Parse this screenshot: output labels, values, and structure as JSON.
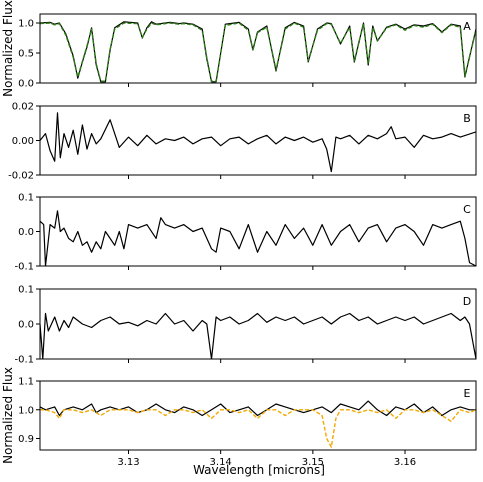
{
  "chart_data": [
    {
      "id": "A",
      "type": "line",
      "panel_label": "A",
      "ylabel": "Normalized Flux",
      "xlim": [
        3.1204,
        3.1677
      ],
      "ylim": [
        0.0,
        1.15
      ],
      "yticks": [
        0.0,
        0.5,
        1.0
      ],
      "ytick_labels": [
        "0.0",
        "0.5",
        "1.0"
      ],
      "series": [
        {
          "style": "solid",
          "color": "#000000",
          "x": [
            3.1204,
            3.1215,
            3.122,
            3.1225,
            3.1232,
            3.124,
            3.1245,
            3.125,
            3.1255,
            3.126,
            3.1265,
            3.127,
            3.1275,
            3.128,
            3.1285,
            3.1295,
            3.131,
            3.1315,
            3.132,
            3.1325,
            3.133,
            3.1345,
            3.1355,
            3.136,
            3.137,
            3.138,
            3.1385,
            3.139,
            3.1395,
            3.1405,
            3.142,
            3.143,
            3.1435,
            3.144,
            3.145,
            3.146,
            3.147,
            3.148,
            3.149,
            3.1495,
            3.1505,
            3.1515,
            3.152,
            3.153,
            3.154,
            3.1545,
            3.1555,
            3.156,
            3.1565,
            3.157,
            3.158,
            3.159,
            3.16,
            3.161,
            3.162,
            3.163,
            3.164,
            3.165,
            3.166,
            3.1665,
            3.1677
          ],
          "y": [
            1.0,
            1.01,
            0.98,
            1.0,
            0.82,
            0.45,
            0.08,
            0.35,
            0.6,
            0.92,
            0.3,
            0.02,
            0.02,
            0.55,
            0.92,
            1.02,
            1.0,
            0.75,
            0.92,
            1.02,
            0.98,
            1.01,
            0.99,
            1.0,
            0.98,
            0.9,
            0.4,
            0.02,
            0.02,
            0.98,
            1.01,
            0.9,
            0.55,
            0.85,
            0.95,
            0.2,
            0.92,
            1.01,
            0.95,
            0.35,
            0.9,
            1.0,
            0.99,
            0.65,
            0.95,
            0.35,
            1.0,
            0.3,
            0.95,
            0.7,
            0.93,
            0.98,
            0.9,
            0.97,
            0.95,
            0.99,
            0.85,
            0.98,
            0.95,
            0.1,
            0.9
          ]
        },
        {
          "style": "dashed",
          "color": "#2a7d12",
          "x": [
            3.1204,
            3.1215,
            3.122,
            3.1225,
            3.1232,
            3.124,
            3.1245,
            3.125,
            3.1255,
            3.126,
            3.1265,
            3.127,
            3.1275,
            3.128,
            3.1285,
            3.1295,
            3.131,
            3.1315,
            3.132,
            3.1325,
            3.133,
            3.1345,
            3.1355,
            3.136,
            3.137,
            3.138,
            3.1385,
            3.139,
            3.1395,
            3.1405,
            3.142,
            3.143,
            3.1435,
            3.144,
            3.145,
            3.146,
            3.147,
            3.148,
            3.149,
            3.1495,
            3.1505,
            3.1515,
            3.152,
            3.153,
            3.154,
            3.1545,
            3.1555,
            3.156,
            3.1565,
            3.157,
            3.158,
            3.159,
            3.16,
            3.161,
            3.162,
            3.163,
            3.164,
            3.165,
            3.166,
            3.1665,
            3.1677
          ],
          "y": [
            0.99,
            1.0,
            0.97,
            0.99,
            0.8,
            0.43,
            0.1,
            0.36,
            0.62,
            0.9,
            0.32,
            0.03,
            0.03,
            0.56,
            0.9,
            1.0,
            0.99,
            0.76,
            0.9,
            1.0,
            0.97,
            1.0,
            0.98,
            0.99,
            0.97,
            0.88,
            0.42,
            0.03,
            0.03,
            0.96,
            1.0,
            0.88,
            0.56,
            0.84,
            0.93,
            0.22,
            0.9,
            1.0,
            0.93,
            0.37,
            0.88,
            0.99,
            0.98,
            0.66,
            0.93,
            0.37,
            0.99,
            0.32,
            0.93,
            0.7,
            0.92,
            0.97,
            0.88,
            0.96,
            0.93,
            0.98,
            0.84,
            0.97,
            0.93,
            0.12,
            0.88
          ]
        }
      ]
    },
    {
      "id": "B",
      "type": "line",
      "panel_label": "B",
      "xlim": [
        3.1204,
        3.1677
      ],
      "ylim": [
        -0.02,
        0.02
      ],
      "yticks": [
        -0.02,
        0.0,
        0.02
      ],
      "ytick_labels": [
        "-0.02",
        "0.00",
        "0.02"
      ],
      "series": [
        {
          "style": "solid",
          "color": "#000000",
          "x": [
            3.1204,
            3.121,
            3.1215,
            3.122,
            3.1223,
            3.1226,
            3.123,
            3.1235,
            3.124,
            3.1245,
            3.125,
            3.1255,
            3.126,
            3.1265,
            3.127,
            3.128,
            3.129,
            3.13,
            3.131,
            3.132,
            3.133,
            3.134,
            3.135,
            3.136,
            3.137,
            3.138,
            3.139,
            3.14,
            3.141,
            3.142,
            3.143,
            3.144,
            3.145,
            3.146,
            3.147,
            3.148,
            3.149,
            3.15,
            3.151,
            3.1515,
            3.152,
            3.1525,
            3.153,
            3.154,
            3.155,
            3.156,
            3.157,
            3.158,
            3.1585,
            3.159,
            3.16,
            3.161,
            3.162,
            3.163,
            3.164,
            3.165,
            3.166,
            3.1677
          ],
          "y": [
            0.0,
            0.004,
            -0.006,
            -0.012,
            0.016,
            -0.01,
            0.004,
            -0.004,
            0.006,
            -0.008,
            0.009,
            -0.005,
            0.004,
            -0.002,
            0.001,
            0.012,
            -0.004,
            0.002,
            -0.003,
            0.003,
            -0.002,
            0.001,
            0.0,
            0.002,
            -0.002,
            0.001,
            0.002,
            -0.003,
            0.001,
            0.002,
            -0.002,
            0.001,
            0.003,
            -0.002,
            0.002,
            0.0,
            0.002,
            -0.001,
            0.001,
            -0.005,
            -0.018,
            0.002,
            0.001,
            0.003,
            -0.002,
            0.003,
            0.001,
            0.004,
            0.008,
            0.001,
            0.002,
            -0.004,
            0.003,
            0.001,
            0.002,
            0.004,
            0.002,
            0.005
          ]
        }
      ]
    },
    {
      "id": "C",
      "type": "line",
      "panel_label": "C",
      "xlim": [
        3.1204,
        3.1677
      ],
      "ylim": [
        -0.1,
        0.1
      ],
      "yticks": [
        -0.1,
        0.0,
        0.1
      ],
      "ytick_labels": [
        "-0.1",
        "0.0",
        "0.1"
      ],
      "series": [
        {
          "style": "solid",
          "color": "#000000",
          "x": [
            3.1204,
            3.1208,
            3.121,
            3.1215,
            3.122,
            3.1223,
            3.1226,
            3.123,
            3.1235,
            3.124,
            3.1245,
            3.125,
            3.1255,
            3.126,
            3.1265,
            3.127,
            3.1275,
            3.128,
            3.1285,
            3.129,
            3.1295,
            3.13,
            3.131,
            3.132,
            3.133,
            3.1335,
            3.134,
            3.135,
            3.136,
            3.137,
            3.138,
            3.139,
            3.1395,
            3.14,
            3.141,
            3.142,
            3.143,
            3.144,
            3.145,
            3.146,
            3.147,
            3.148,
            3.149,
            3.15,
            3.151,
            3.152,
            3.153,
            3.154,
            3.155,
            3.156,
            3.157,
            3.158,
            3.159,
            3.16,
            3.161,
            3.162,
            3.163,
            3.164,
            3.165,
            3.166,
            3.1665,
            3.167,
            3.1677
          ],
          "y": [
            0.03,
            0.02,
            -0.1,
            0.02,
            0.01,
            0.06,
            0.0,
            0.01,
            -0.02,
            -0.03,
            0.0,
            -0.04,
            -0.03,
            -0.06,
            -0.03,
            -0.05,
            0.0,
            -0.02,
            -0.04,
            0.0,
            -0.05,
            0.02,
            0.01,
            0.02,
            -0.02,
            0.04,
            0.02,
            0.01,
            0.02,
            0.0,
            0.01,
            -0.05,
            -0.06,
            0.01,
            0.0,
            -0.05,
            0.02,
            -0.06,
            0.0,
            -0.04,
            0.02,
            -0.02,
            0.01,
            -0.04,
            0.02,
            -0.04,
            0.0,
            0.02,
            -0.03,
            0.01,
            0.02,
            -0.03,
            0.01,
            0.02,
            0.0,
            -0.04,
            0.02,
            0.01,
            0.02,
            0.03,
            -0.02,
            -0.09,
            -0.1
          ]
        }
      ]
    },
    {
      "id": "D",
      "type": "line",
      "panel_label": "D",
      "xlim": [
        3.1204,
        3.1677
      ],
      "ylim": [
        -0.1,
        0.1
      ],
      "yticks": [
        -0.1,
        0.0,
        0.1
      ],
      "ytick_labels": [
        "-0.1",
        "0.0",
        "0.1"
      ],
      "series": [
        {
          "style": "solid",
          "color": "#000000",
          "x": [
            3.1204,
            3.1207,
            3.121,
            3.1213,
            3.122,
            3.1225,
            3.123,
            3.1235,
            3.124,
            3.125,
            3.126,
            3.127,
            3.128,
            3.129,
            3.13,
            3.131,
            3.132,
            3.133,
            3.134,
            3.135,
            3.136,
            3.137,
            3.138,
            3.1385,
            3.139,
            3.1395,
            3.14,
            3.141,
            3.142,
            3.143,
            3.144,
            3.145,
            3.146,
            3.147,
            3.148,
            3.149,
            3.15,
            3.151,
            3.152,
            3.153,
            3.154,
            3.155,
            3.156,
            3.157,
            3.158,
            3.159,
            3.16,
            3.161,
            3.162,
            3.163,
            3.164,
            3.165,
            3.166,
            3.1665,
            3.167,
            3.1677
          ],
          "y": [
            0.0,
            -0.1,
            0.03,
            -0.02,
            0.02,
            -0.02,
            0.01,
            -0.01,
            0.02,
            0.0,
            -0.01,
            0.01,
            0.02,
            0.0,
            0.005,
            -0.005,
            0.01,
            0.0,
            0.03,
            0.0,
            0.01,
            -0.02,
            0.01,
            0.0,
            -0.1,
            0.02,
            0.01,
            0.02,
            0.0,
            0.01,
            0.03,
            0.005,
            0.02,
            0.01,
            0.02,
            0.0,
            0.01,
            0.02,
            0.0,
            0.02,
            0.03,
            0.01,
            0.02,
            0.0,
            0.01,
            0.02,
            0.01,
            0.02,
            0.0,
            0.01,
            0.02,
            0.03,
            0.01,
            0.02,
            0.0,
            -0.1
          ]
        }
      ]
    },
    {
      "id": "E",
      "type": "line",
      "panel_label": "E",
      "ylabel": "Normalized Flux",
      "xlabel": "Wavelength [microns]",
      "xlim": [
        3.1204,
        3.1677
      ],
      "ylim": [
        0.86,
        1.1
      ],
      "yticks": [
        0.9,
        1.0,
        1.1
      ],
      "ytick_labels": [
        "0.9",
        "1.0",
        "1.1"
      ],
      "xticks": [
        3.13,
        3.14,
        3.15,
        3.16
      ],
      "xtick_labels": [
        "3.13",
        "3.14",
        "3.15",
        "3.16"
      ],
      "series": [
        {
          "style": "solid",
          "color": "#000000",
          "x": [
            3.1204,
            3.121,
            3.122,
            3.1225,
            3.123,
            3.124,
            3.125,
            3.126,
            3.1265,
            3.127,
            3.128,
            3.129,
            3.13,
            3.131,
            3.132,
            3.133,
            3.134,
            3.135,
            3.136,
            3.137,
            3.138,
            3.139,
            3.14,
            3.141,
            3.142,
            3.143,
            3.144,
            3.145,
            3.146,
            3.147,
            3.148,
            3.149,
            3.15,
            3.151,
            3.152,
            3.153,
            3.154,
            3.155,
            3.156,
            3.157,
            3.158,
            3.159,
            3.16,
            3.161,
            3.162,
            3.163,
            3.164,
            3.165,
            3.166,
            3.167,
            3.1677
          ],
          "y": [
            1.01,
            1.0,
            1.01,
            0.98,
            1.0,
            1.01,
            1.0,
            1.02,
            0.99,
            1.0,
            1.01,
            1.0,
            1.01,
            0.99,
            1.0,
            1.02,
            1.0,
            0.99,
            1.01,
            1.0,
            0.98,
            1.0,
            1.02,
            0.99,
            1.0,
            1.01,
            0.98,
            1.0,
            1.02,
            1.01,
            1.0,
            0.99,
            1.0,
            1.01,
            0.99,
            1.02,
            1.01,
            1.0,
            1.03,
            1.0,
            0.98,
            1.01,
            1.0,
            1.02,
            0.99,
            1.01,
            0.98,
            1.0,
            1.01,
            1.0,
            1.0
          ]
        },
        {
          "style": "dashed",
          "color": "#f2a900",
          "x": [
            3.1204,
            3.121,
            3.122,
            3.1225,
            3.123,
            3.124,
            3.125,
            3.126,
            3.127,
            3.128,
            3.129,
            3.13,
            3.131,
            3.132,
            3.133,
            3.134,
            3.135,
            3.136,
            3.137,
            3.138,
            3.139,
            3.14,
            3.141,
            3.142,
            3.143,
            3.144,
            3.145,
            3.146,
            3.147,
            3.148,
            3.149,
            3.15,
            3.151,
            3.1515,
            3.152,
            3.1525,
            3.153,
            3.154,
            3.155,
            3.156,
            3.157,
            3.158,
            3.159,
            3.16,
            3.161,
            3.162,
            3.163,
            3.164,
            3.165,
            3.166,
            3.167,
            3.1677
          ],
          "y": [
            1.0,
            1.0,
            0.99,
            0.97,
            1.0,
            1.0,
            0.99,
            1.0,
            0.98,
            1.0,
            1.0,
            1.0,
            0.99,
            1.0,
            1.0,
            0.98,
            1.0,
            1.0,
            0.99,
            1.0,
            0.97,
            1.0,
            1.0,
            0.99,
            1.0,
            0.97,
            1.0,
            1.0,
            0.98,
            1.0,
            1.0,
            1.0,
            0.98,
            0.9,
            0.87,
            0.97,
            1.0,
            1.0,
            0.99,
            1.0,
            0.99,
            1.0,
            0.97,
            1.0,
            1.0,
            0.99,
            1.0,
            0.98,
            0.96,
            1.0,
            0.99,
            1.0
          ]
        }
      ]
    }
  ]
}
